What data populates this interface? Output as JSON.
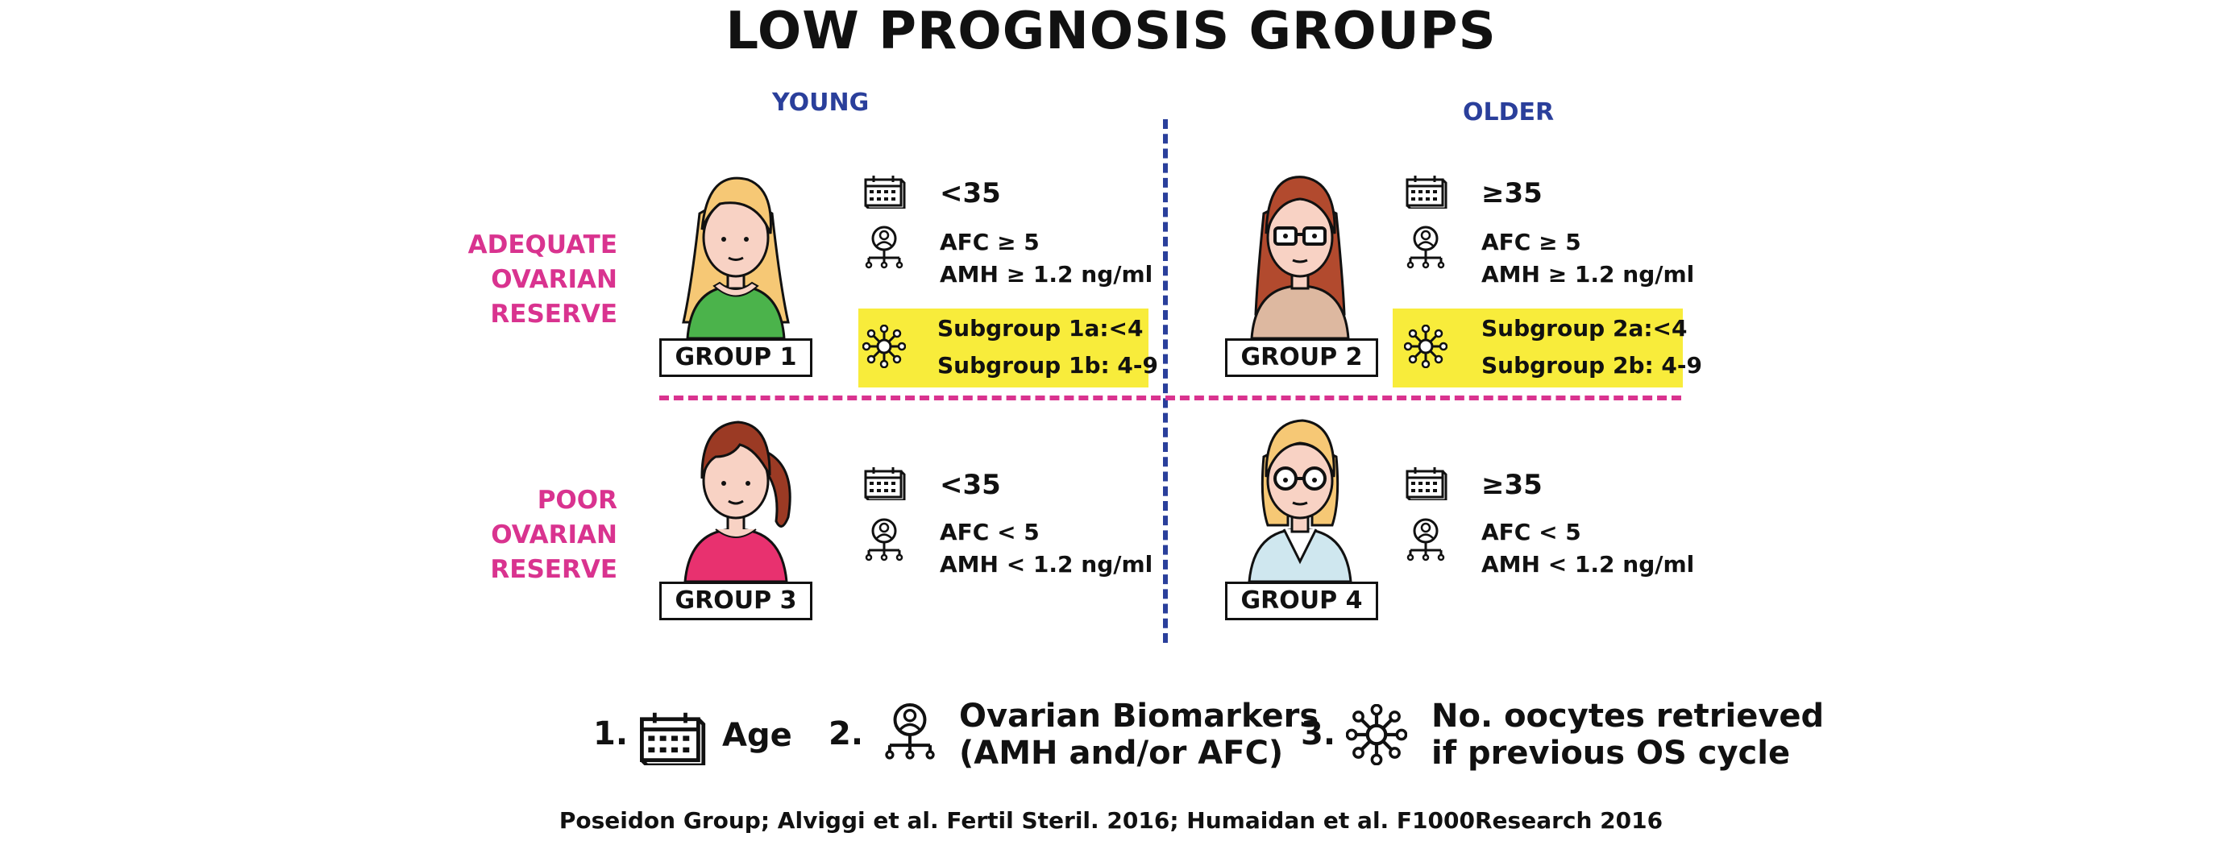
{
  "title": "LOW PROGNOSIS GROUPS",
  "columns": {
    "young": "YOUNG",
    "older": "OLDER"
  },
  "rows": {
    "adequate": [
      "ADEQUATE",
      "OVARIAN",
      "RESERVE"
    ],
    "poor": [
      "POOR",
      "OVARIAN",
      "RESERVE"
    ]
  },
  "groups": [
    {
      "label": "GROUP 1",
      "age": "<35",
      "afc": "AFC ≥ 5",
      "amh": "AMH ≥ 1.2 ng/ml",
      "sub_a": "Subgroup 1a:<4",
      "sub_b": "Subgroup 1b: 4-9"
    },
    {
      "label": "GROUP 2",
      "age": "≥35",
      "afc": "AFC ≥ 5",
      "amh": "AMH ≥ 1.2 ng/ml",
      "sub_a": "Subgroup 2a:<4",
      "sub_b": "Subgroup 2b: 4-9"
    },
    {
      "label": "GROUP 3",
      "age": "<35",
      "afc": "AFC < 5",
      "amh": "AMH < 1.2 ng/ml"
    },
    {
      "label": "GROUP 4",
      "age": "≥35",
      "afc": "AFC < 5",
      "amh": "AMH < 1.2 ng/ml"
    }
  ],
  "legend": [
    {
      "num": "1.",
      "lines": [
        "Age"
      ],
      "icon": "calendar-icon"
    },
    {
      "num": "2.",
      "lines": [
        "Ovarian Biomarkers",
        "(AMH and/or AFC)"
      ],
      "icon": "ovary-biomarker-icon"
    },
    {
      "num": "3.",
      "lines": [
        "No. oocytes retrieved",
        "if previous OS cycle"
      ],
      "icon": "oocyte-icon"
    }
  ],
  "citation": "Poseidon Group; Alviggi et al. Fertil Steril. 2016; Humaidan et al. F1000Research 2016",
  "colors": {
    "blue": "#2a3f9b",
    "pink": "#d9338f",
    "yellow": "#f8ec3b"
  }
}
